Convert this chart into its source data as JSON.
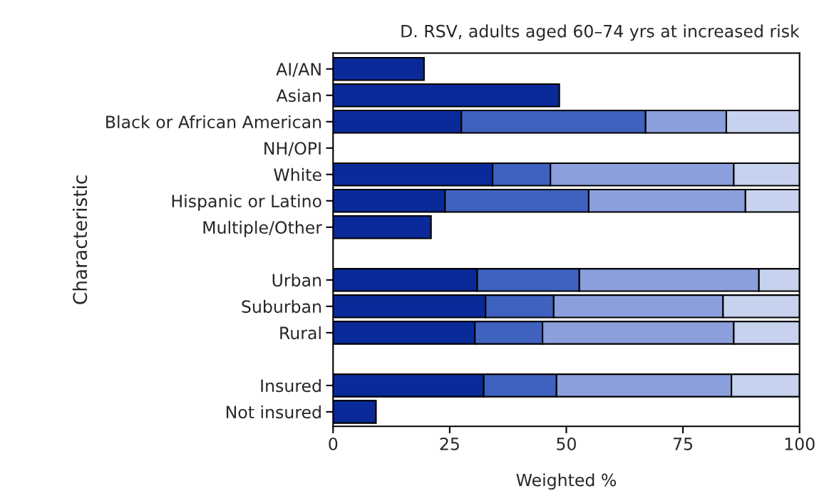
{
  "chart_data": {
    "type": "bar",
    "orientation": "horizontal",
    "stacked": true,
    "title": "D. RSV, adults aged 60–74 yrs at increased risk",
    "xlabel": "Weighted %",
    "ylabel": "Characteristic",
    "categories": [
      "AI/AN",
      "Asian",
      "Black or African American",
      "NH/OPI",
      "White",
      "Hispanic or Latino",
      "Multiple/Other",
      null,
      "Urban",
      "Suburban",
      "Rural",
      null,
      "Insured",
      "Not insured"
    ],
    "series": [
      {
        "color": "#0a2a9a",
        "values": [
          19.5,
          48.5,
          27.5,
          null,
          34.2,
          24.0,
          21.0,
          null,
          30.9,
          32.7,
          30.4,
          null,
          32.3,
          9.2
        ]
      },
      {
        "color": "#3f62c0",
        "values": [
          null,
          null,
          39.5,
          null,
          12.4,
          30.8,
          null,
          null,
          21.9,
          14.6,
          14.5,
          null,
          15.6,
          null
        ]
      },
      {
        "color": "#8a9fdc",
        "values": [
          null,
          null,
          17.3,
          null,
          39.3,
          33.6,
          null,
          null,
          38.5,
          36.3,
          41.0,
          null,
          37.5,
          null
        ]
      },
      {
        "color": "#c7d2ee",
        "values": [
          null,
          null,
          15.7,
          null,
          14.1,
          11.6,
          null,
          null,
          8.7,
          16.4,
          14.1,
          null,
          14.6,
          null
        ]
      }
    ],
    "xlim": [
      0,
      100
    ],
    "xticks": [
      0,
      25,
      50,
      75,
      100
    ],
    "grid": false,
    "legend": false
  }
}
